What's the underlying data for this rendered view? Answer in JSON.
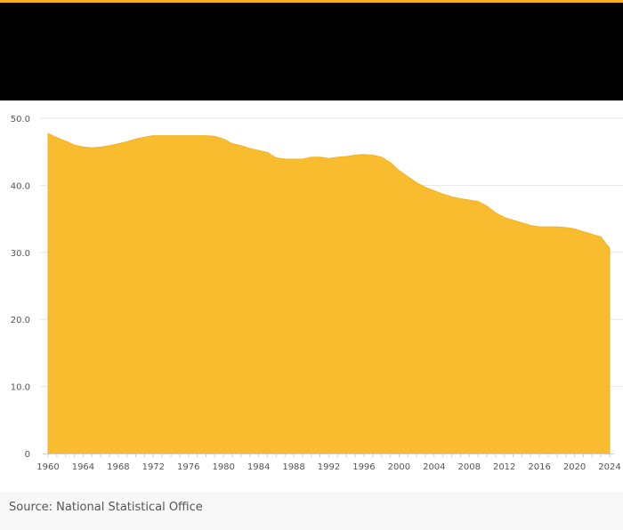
{
  "header": {
    "accent_color": "#f5b21b",
    "background_color": "#000000"
  },
  "source_text": "Source: National Statistical Office",
  "chart_data": {
    "type": "area",
    "title": "",
    "xlabel": "",
    "ylabel": "",
    "fill_color": "#fabc2f",
    "grid": true,
    "xlim": [
      1960,
      2024
    ],
    "ylim": [
      0,
      50
    ],
    "x_ticks": [
      "1960",
      "1964",
      "1968",
      "1972",
      "1976",
      "1980",
      "1984",
      "1988",
      "1992",
      "1996",
      "2000",
      "2004",
      "2008",
      "2012",
      "2016",
      "2020",
      "2024"
    ],
    "y_ticks": [
      "0",
      "10.0",
      "20.0",
      "30.0",
      "40.0",
      "50.0"
    ],
    "x": [
      1960,
      1961,
      1962,
      1963,
      1964,
      1965,
      1966,
      1967,
      1968,
      1969,
      1970,
      1971,
      1972,
      1973,
      1974,
      1975,
      1976,
      1977,
      1978,
      1979,
      1980,
      1981,
      1982,
      1983,
      1984,
      1985,
      1986,
      1987,
      1988,
      1989,
      1990,
      1991,
      1992,
      1993,
      1994,
      1995,
      1996,
      1997,
      1998,
      1999,
      2000,
      2001,
      2002,
      2003,
      2004,
      2005,
      2006,
      2007,
      2008,
      2009,
      2010,
      2011,
      2012,
      2013,
      2014,
      2015,
      2016,
      2017,
      2018,
      2019,
      2020,
      2021,
      2022,
      2023,
      2024
    ],
    "series": [
      {
        "values": [
          47.7,
          47.1,
          46.6,
          46.0,
          45.7,
          45.6,
          45.7,
          45.9,
          46.2,
          46.5,
          46.9,
          47.2,
          47.4,
          47.4,
          47.4,
          47.4,
          47.4,
          47.4,
          47.4,
          47.3,
          46.9,
          46.2,
          45.9,
          45.5,
          45.2,
          44.9,
          44.1,
          43.9,
          43.9,
          43.9,
          44.2,
          44.2,
          44.0,
          44.2,
          44.3,
          44.5,
          44.6,
          44.5,
          44.2,
          43.4,
          42.2,
          41.3,
          40.4,
          39.7,
          39.2,
          38.7,
          38.3,
          38.0,
          37.8,
          37.6,
          36.9,
          35.9,
          35.2,
          34.8,
          34.4,
          34.0,
          33.8,
          33.8,
          33.8,
          33.7,
          33.5,
          33.1,
          32.7,
          32.3,
          30.6
        ]
      }
    ]
  }
}
